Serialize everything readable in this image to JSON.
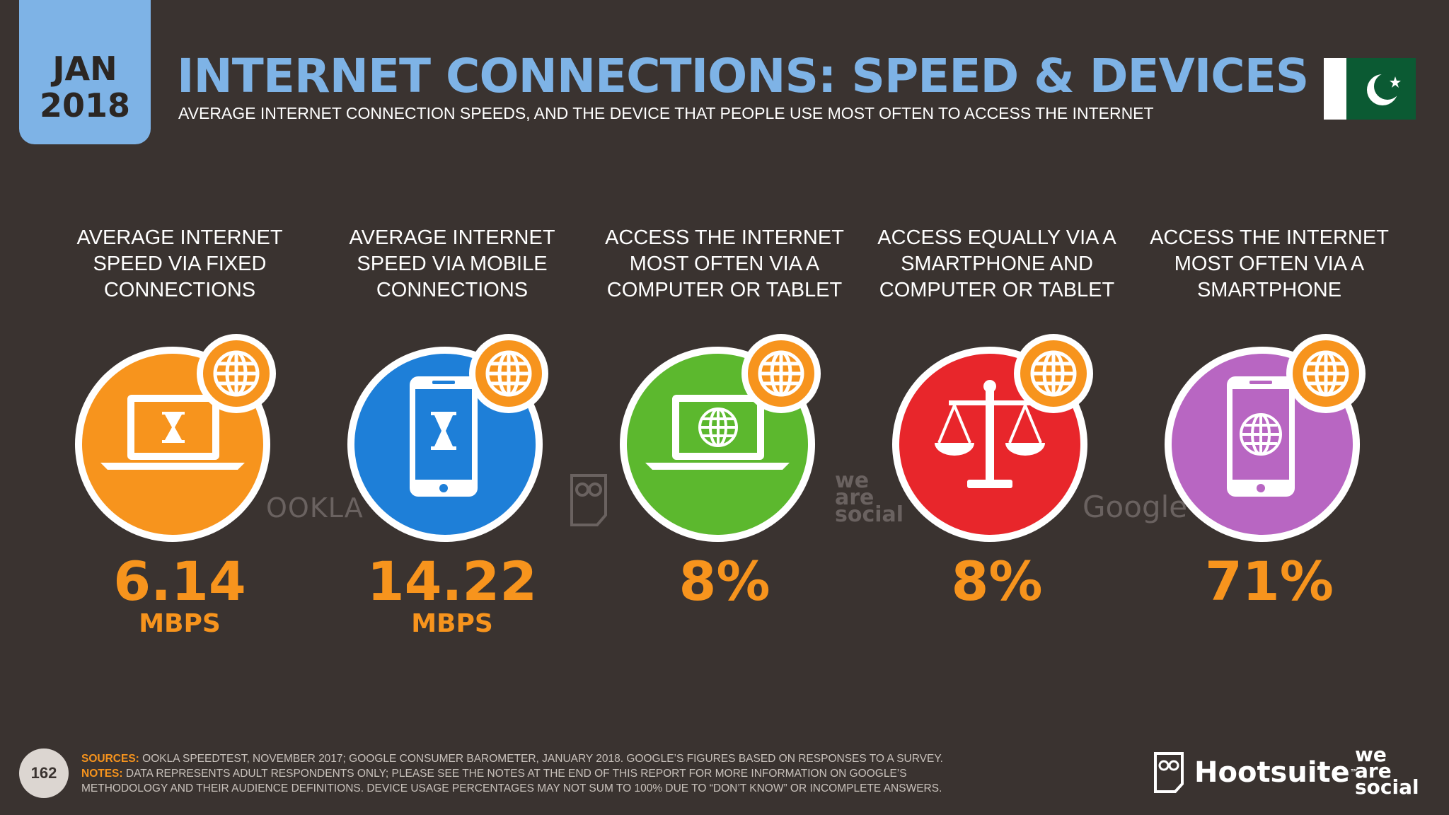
{
  "header": {
    "date_month": "JAN",
    "date_year": "2018",
    "title": "INTERNET CONNECTIONS: SPEED & DEVICES",
    "subtitle": "AVERAGE INTERNET CONNECTION SPEEDS, AND THE DEVICE THAT PEOPLE USE MOST OFTEN TO ACCESS THE INTERNET",
    "flag_icon": "pakistan-flag-icon"
  },
  "stats": [
    {
      "label": "AVERAGE INTERNET SPEED VIA FIXED CONNECTIONS",
      "value": "6.14",
      "unit": "MBPS",
      "icon": "laptop-hourglass-icon",
      "color": "#f7941d"
    },
    {
      "label": "AVERAGE INTERNET SPEED VIA MOBILE CONNECTIONS",
      "value": "14.22",
      "unit": "MBPS",
      "icon": "smartphone-hourglass-icon",
      "color": "#1e7fd8"
    },
    {
      "label": "ACCESS THE INTERNET MOST OFTEN VIA A COMPUTER OR TABLET",
      "value": "8%",
      "unit": "",
      "icon": "laptop-globe-icon",
      "color": "#5cb82e"
    },
    {
      "label": "ACCESS EQUALLY VIA A SMARTPHONE AND COMPUTER OR TABLET",
      "value": "8%",
      "unit": "",
      "icon": "scales-icon",
      "color": "#e8262b"
    },
    {
      "label": "ACCESS THE INTERNET MOST OFTEN VIA A SMARTPHONE",
      "value": "71%",
      "unit": "",
      "icon": "smartphone-globe-icon",
      "color": "#b866c2"
    }
  ],
  "watermarks": {
    "ookla": "OOKLA",
    "wearesocial_1": "we",
    "wearesocial_2": "are",
    "wearesocial_3": "social",
    "google": "Google"
  },
  "footer": {
    "page_number": "162",
    "sources_key": "SOURCES:",
    "sources_text": " OOKLA SPEEDTEST, NOVEMBER 2017; GOOGLE CONSUMER BAROMETER, JANUARY 2018. GOOGLE’S FIGURES BASED ON RESPONSES TO A SURVEY.",
    "notes_key": "NOTES:",
    "notes_text": " DATA REPRESENTS ADULT RESPONDENTS ONLY; PLEASE SEE THE NOTES AT THE END OF THIS REPORT FOR MORE INFORMATION ON GOOGLE’S METHODOLOGY AND THEIR AUDIENCE DEFINITIONS. DEVICE USAGE PERCENTAGES MAY NOT SUM TO 100% DUE TO “DON’T KNOW” OR INCOMPLETE ANSWERS.",
    "brand_hootsuite": "Hootsuite",
    "brand_tm": "™",
    "brand_was_1": "we",
    "brand_was_2": "are",
    "brand_was_3": "social"
  },
  "colors": {
    "background": "#3a3330",
    "accent_blue": "#7eb3e6",
    "accent_orange": "#f7941d"
  }
}
